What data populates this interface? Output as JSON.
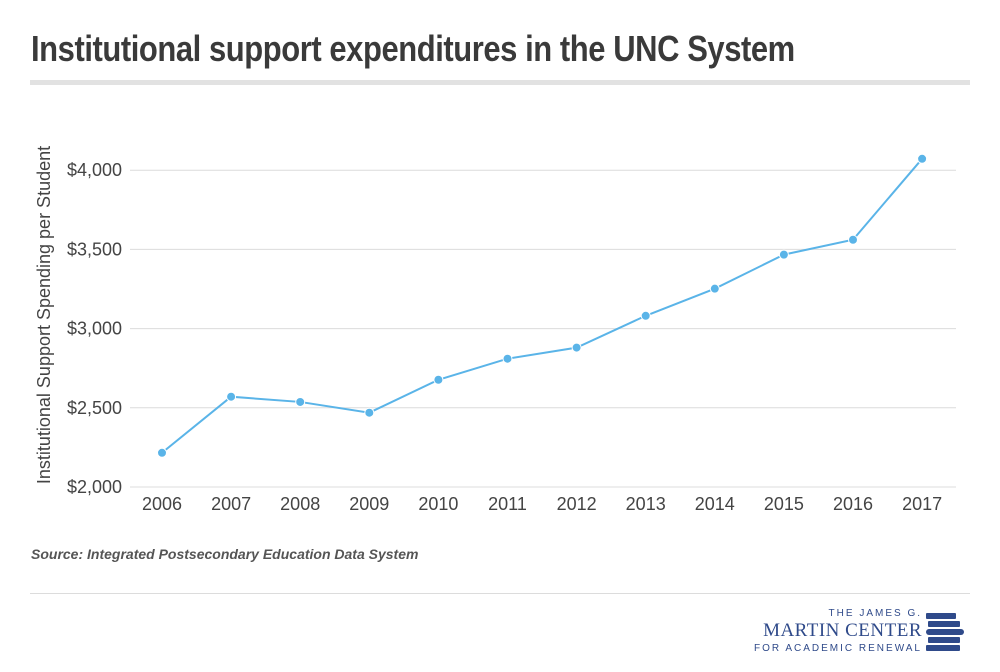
{
  "title": "Institutional support expenditures in the UNC System",
  "source": "Source: Integrated Postsecondary Education Data System",
  "logo": {
    "line1": "THE JAMES G.",
    "line2": "MARTIN CENTER",
    "line3": "FOR ACADEMIC RENEWAL"
  },
  "colors": {
    "line": "#5ab4e8",
    "grid": "#dcdcdc",
    "text": "#444444",
    "logo": "#2f4a8a"
  },
  "chart_data": {
    "type": "line",
    "title": "Institutional support expenditures in the UNC System",
    "xlabel": "",
    "ylabel": "Institutional Support Spending per Student",
    "categories": [
      "2006",
      "2007",
      "2008",
      "2009",
      "2010",
      "2011",
      "2012",
      "2013",
      "2014",
      "2015",
      "2016",
      "2017"
    ],
    "values": [
      2216,
      2570,
      2537,
      2469,
      2677,
      2810,
      2880,
      3081,
      3252,
      3467,
      3561,
      4072
    ],
    "yticks": [
      2000,
      2500,
      3000,
      3500,
      4000
    ],
    "ytick_labels": [
      "$2,000",
      "$2,500",
      "$3,000",
      "$3,500",
      "$4,000"
    ],
    "ylim": [
      2000,
      4200
    ],
    "grid": true,
    "markers": true
  }
}
